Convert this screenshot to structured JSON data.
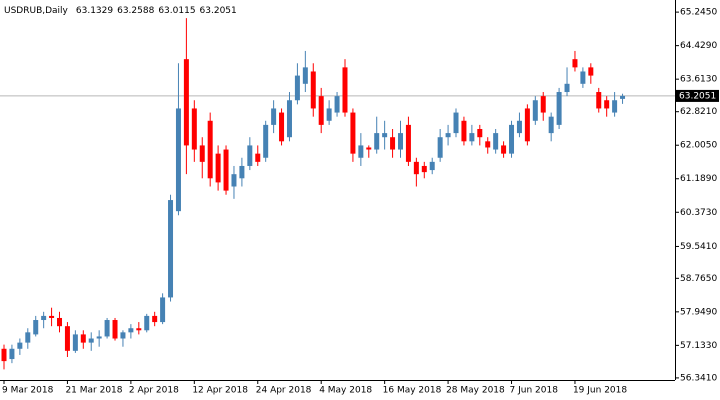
{
  "chart_data": {
    "type": "candlestick",
    "title": "USDRUB,Daily",
    "categories": [
      "9 Mar 2018",
      null,
      null,
      null,
      null,
      null,
      null,
      null,
      "21 Mar 2018",
      null,
      null,
      null,
      null,
      null,
      null,
      null,
      "2 Apr 2018",
      null,
      null,
      null,
      null,
      null,
      null,
      null,
      "12 Apr 2018",
      null,
      null,
      null,
      null,
      null,
      null,
      null,
      "24 Apr 2018",
      null,
      null,
      null,
      null,
      null,
      null,
      null,
      "4 May 2018",
      null,
      null,
      null,
      null,
      null,
      null,
      null,
      "16 May 2018",
      null,
      null,
      null,
      null,
      null,
      null,
      null,
      "28 May 2018",
      null,
      null,
      null,
      null,
      null,
      null,
      null,
      "7 Jun 2018",
      null,
      null,
      null,
      null,
      null,
      null,
      null,
      "19 Jun 2018",
      null,
      null,
      null,
      null,
      null,
      null
    ],
    "open": [
      57.05,
      56.8,
      57.05,
      57.2,
      57.4,
      57.75,
      57.85,
      57.8,
      57.6,
      57.0,
      57.4,
      57.2,
      57.3,
      57.35,
      57.75,
      57.3,
      57.45,
      57.55,
      57.5,
      57.85,
      57.7,
      58.3,
      60.4,
      64.1,
      62.9,
      62.0,
      62.6,
      61.8,
      61.9,
      61.0,
      61.2,
      61.5,
      61.8,
      61.7,
      62.5,
      62.8,
      62.2,
      63.1,
      63.5,
      63.8,
      63.2,
      62.6,
      62.8,
      63.9,
      62.8,
      61.7,
      61.95,
      61.9,
      62.2,
      62.2,
      61.9,
      62.5,
      61.6,
      61.5,
      61.4,
      61.7,
      62.2,
      62.3,
      62.6,
      62.1,
      62.4,
      62.1,
      61.9,
      62.0,
      61.8,
      62.3,
      62.9,
      62.6,
      63.2,
      62.3,
      62.5,
      63.3,
      64.1,
      63.5,
      63.9,
      63.3,
      63.1,
      62.8,
      63.1329
    ],
    "high": [
      57.15,
      57.15,
      57.3,
      57.55,
      57.85,
      57.95,
      58.05,
      57.95,
      57.7,
      57.5,
      57.5,
      57.45,
      57.5,
      57.8,
      57.8,
      57.5,
      57.65,
      57.7,
      57.9,
      57.95,
      58.4,
      60.8,
      64.0,
      65.1,
      63.1,
      62.2,
      62.8,
      62.0,
      62.0,
      61.5,
      61.7,
      62.2,
      62.0,
      62.6,
      63.1,
      62.9,
      63.3,
      64.0,
      64.3,
      64.0,
      63.4,
      63.1,
      63.3,
      64.1,
      62.9,
      62.3,
      62.0,
      62.7,
      62.6,
      62.4,
      62.6,
      62.7,
      61.7,
      61.6,
      61.7,
      62.4,
      62.5,
      62.9,
      62.7,
      62.5,
      62.5,
      62.2,
      62.4,
      62.1,
      62.6,
      62.8,
      63.0,
      63.2,
      63.3,
      62.8,
      63.4,
      63.9,
      64.3,
      63.9,
      64.0,
      63.4,
      63.2,
      63.3,
      63.2588
    ],
    "low": [
      56.55,
      56.7,
      56.9,
      57.05,
      57.35,
      57.55,
      57.6,
      57.45,
      56.85,
      56.95,
      57.05,
      57.0,
      57.1,
      57.3,
      57.25,
      57.1,
      57.3,
      57.4,
      57.45,
      57.6,
      57.65,
      58.2,
      60.3,
      61.3,
      61.6,
      61.2,
      61.0,
      60.9,
      60.8,
      60.7,
      61.0,
      61.4,
      61.5,
      61.6,
      62.3,
      62.0,
      62.1,
      63.0,
      63.3,
      62.7,
      62.3,
      62.5,
      62.7,
      62.7,
      61.6,
      61.5,
      61.7,
      61.8,
      61.9,
      61.7,
      61.7,
      61.5,
      61.0,
      61.2,
      61.3,
      61.6,
      62.0,
      62.2,
      62.0,
      62.0,
      62.0,
      61.8,
      61.8,
      61.7,
      61.7,
      62.2,
      62.0,
      62.5,
      62.6,
      62.1,
      62.4,
      63.2,
      63.8,
      63.4,
      63.5,
      62.8,
      62.7,
      62.7,
      63.0115
    ],
    "close": [
      56.75,
      57.05,
      57.2,
      57.45,
      57.75,
      57.85,
      57.8,
      57.6,
      57.0,
      57.4,
      57.2,
      57.3,
      57.35,
      57.75,
      57.3,
      57.45,
      57.55,
      57.5,
      57.85,
      57.7,
      58.3,
      60.67,
      62.9,
      62.0,
      61.9,
      61.6,
      61.2,
      61.1,
      60.9,
      61.3,
      61.5,
      62.0,
      61.6,
      62.5,
      62.9,
      62.1,
      63.1,
      63.7,
      63.9,
      62.9,
      62.5,
      62.9,
      63.2,
      62.8,
      61.8,
      62.0,
      61.9,
      62.3,
      62.3,
      61.9,
      62.3,
      61.6,
      61.3,
      61.35,
      61.6,
      62.2,
      62.3,
      62.8,
      62.1,
      62.3,
      62.2,
      61.95,
      62.3,
      61.8,
      62.5,
      62.6,
      62.1,
      63.1,
      62.8,
      62.7,
      63.3,
      63.5,
      63.9,
      63.8,
      63.7,
      62.9,
      62.9,
      63.1,
      63.2051
    ],
    "up_color": "#4682b4",
    "down_color": "#ff0000",
    "ylim": [
      56.29,
      65.54
    ],
    "yticks": [
      {
        "value": 65.245,
        "label": "65.2450"
      },
      {
        "value": 64.429,
        "label": "64.4290"
      },
      {
        "value": 63.613,
        "label": "63.6130"
      },
      {
        "value": 62.821,
        "label": "62.8210"
      },
      {
        "value": 62.005,
        "label": "62.0050"
      },
      {
        "value": 61.189,
        "label": "61.1890"
      },
      {
        "value": 60.373,
        "label": "60.3730"
      },
      {
        "value": 59.541,
        "label": "59.5410"
      },
      {
        "value": 58.765,
        "label": "58.7650"
      },
      {
        "value": 57.949,
        "label": "57.9490"
      },
      {
        "value": 57.133,
        "label": "57.1330"
      },
      {
        "value": 56.341,
        "label": "56.3410"
      }
    ],
    "grid": false
  }
}
